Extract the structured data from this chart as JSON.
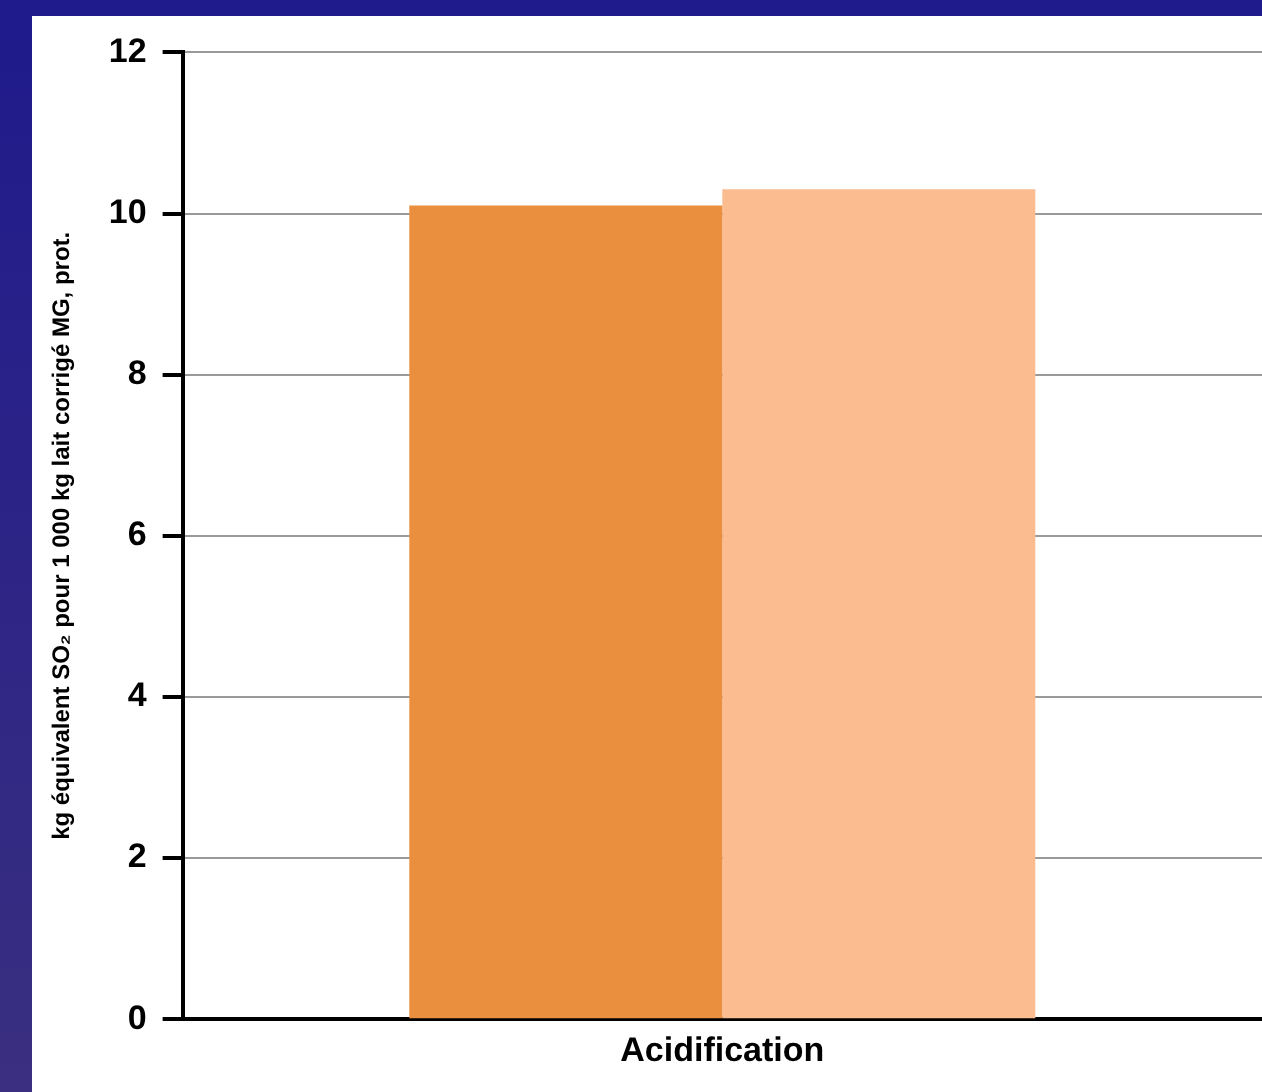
{
  "chart_data": {
    "type": "bar",
    "ylabel": "kg équivalent SO₂ pour 1 000 kg lait corrigé MG, prot.",
    "categories": [
      "Acidification"
    ],
    "series": [
      {
        "color": "#e98f3e",
        "values": [
          10.1
        ]
      },
      {
        "color": "#fbbd8f",
        "values": [
          10.3
        ]
      }
    ],
    "ylim": [
      0,
      12
    ],
    "yticks": [
      0,
      2,
      4,
      6,
      8,
      10,
      12
    ],
    "grid": "y",
    "legend": false
  }
}
